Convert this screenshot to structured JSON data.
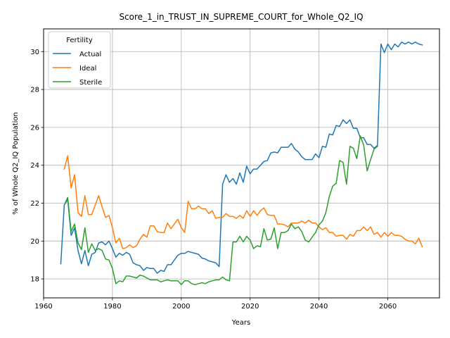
{
  "chart_data": {
    "type": "line",
    "title": "Score_1_in_TRUST_IN_SUPREME_COURT_for_Whole_Q2_IQ",
    "xlabel": "Years",
    "ylabel": "% of Whole Q2_IQ Population",
    "xlim": [
      1960,
      2075
    ],
    "ylim": [
      17.0,
      31.2
    ],
    "xticks": [
      1960,
      1980,
      2000,
      2020,
      2040,
      2060
    ],
    "yticks": [
      18,
      20,
      22,
      24,
      26,
      28,
      30
    ],
    "grid": true,
    "legend": {
      "title": "Fertility",
      "placement": "top-left"
    },
    "colors": {
      "Actual": "#1f77b4",
      "Ideal": "#ff7f0e",
      "Sterile": "#2ca02c"
    },
    "x": [
      1965,
      1966,
      1967,
      1968,
      1969,
      1970,
      1971,
      1972,
      1973,
      1974,
      1975,
      1976,
      1977,
      1978,
      1979,
      1980,
      1981,
      1982,
      1983,
      1984,
      1985,
      1986,
      1987,
      1988,
      1989,
      1990,
      1991,
      1992,
      1993,
      1994,
      1995,
      1996,
      1997,
      1998,
      1999,
      2000,
      2001,
      2002,
      2003,
      2004,
      2005,
      2006,
      2007,
      2008,
      2009,
      2010,
      2011,
      2012,
      2013,
      2014,
      2015,
      2016,
      2017,
      2018,
      2019,
      2020,
      2021,
      2022,
      2023,
      2024,
      2025,
      2026,
      2027,
      2028,
      2029,
      2030,
      2031,
      2032,
      2033,
      2034,
      2035,
      2036,
      2037,
      2038,
      2039,
      2040,
      2041,
      2042,
      2043,
      2044,
      2045,
      2046,
      2047,
      2048,
      2049,
      2050,
      2051,
      2052,
      2053,
      2054,
      2055,
      2056,
      2057,
      2058,
      2059,
      2060,
      2061,
      2062,
      2063,
      2064,
      2065,
      2066,
      2067,
      2068,
      2069,
      2070
    ],
    "series": [
      {
        "name": "Actual",
        "values": [
          18.8,
          21.9,
          22.2,
          20.3,
          20.7,
          19.5,
          18.8,
          19.5,
          18.7,
          19.3,
          19.4,
          19.9,
          19.95,
          19.8,
          20.0,
          19.6,
          19.15,
          19.35,
          19.25,
          19.4,
          19.3,
          18.85,
          18.75,
          18.7,
          18.45,
          18.6,
          18.55,
          18.55,
          18.3,
          18.45,
          18.4,
          18.75,
          18.75,
          19.0,
          19.25,
          19.35,
          19.35,
          19.45,
          19.4,
          19.35,
          19.3,
          19.1,
          19.05,
          18.95,
          18.9,
          18.85,
          18.65,
          23.0,
          23.5,
          23.1,
          23.3,
          23.0,
          23.6,
          23.1,
          23.95,
          23.55,
          23.8,
          23.8,
          24.0,
          24.2,
          24.25,
          24.65,
          24.7,
          24.65,
          24.95,
          24.95,
          24.95,
          25.15,
          24.85,
          24.7,
          24.45,
          24.3,
          24.3,
          24.3,
          24.6,
          24.4,
          25.0,
          24.95,
          25.65,
          25.6,
          26.1,
          26.05,
          26.4,
          26.2,
          26.4,
          25.95,
          25.95,
          25.45,
          25.45,
          25.1,
          25.1,
          24.9,
          25.05,
          30.4,
          29.95,
          30.4,
          30.1,
          30.4,
          30.25,
          30.5,
          30.4,
          30.5,
          30.4,
          30.5,
          30.4,
          30.35
        ]
      },
      {
        "name": "Ideal",
        "values": [
          null,
          23.8,
          24.5,
          22.8,
          23.5,
          21.5,
          21.3,
          22.4,
          21.4,
          21.4,
          21.9,
          22.4,
          21.8,
          21.25,
          21.35,
          20.7,
          19.9,
          20.15,
          19.6,
          19.65,
          19.8,
          19.65,
          19.75,
          20.1,
          20.35,
          20.2,
          20.8,
          20.8,
          20.5,
          20.45,
          20.45,
          20.95,
          20.65,
          20.9,
          21.15,
          20.7,
          20.45,
          22.1,
          21.7,
          21.7,
          21.85,
          21.7,
          21.7,
          21.45,
          21.6,
          21.2,
          21.25,
          21.25,
          21.45,
          21.3,
          21.3,
          21.2,
          21.35,
          21.2,
          21.6,
          21.3,
          21.6,
          21.35,
          21.6,
          21.75,
          21.4,
          21.35,
          21.35,
          20.9,
          20.9,
          20.85,
          20.75,
          20.95,
          20.95,
          20.95,
          21.05,
          20.95,
          21.1,
          20.95,
          20.95,
          20.75,
          20.6,
          20.7,
          20.45,
          20.45,
          20.25,
          20.3,
          20.3,
          20.1,
          20.35,
          20.25,
          20.55,
          20.55,
          20.75,
          20.55,
          20.75,
          20.35,
          20.45,
          20.2,
          20.45,
          20.25,
          20.45,
          20.3,
          20.3,
          20.25,
          20.1,
          20.0,
          20.0,
          19.85,
          20.15,
          19.7
        ]
      },
      {
        "name": "Sterile",
        "values": [
          null,
          21.9,
          22.3,
          20.5,
          20.9,
          19.9,
          19.55,
          20.7,
          19.4,
          19.85,
          19.5,
          19.6,
          19.5,
          19.05,
          19.0,
          18.55,
          17.75,
          17.9,
          17.85,
          18.15,
          18.15,
          18.1,
          18.05,
          18.2,
          18.15,
          18.05,
          17.95,
          17.95,
          17.95,
          17.85,
          17.9,
          17.95,
          17.9,
          17.9,
          17.9,
          17.7,
          17.9,
          17.9,
          17.75,
          17.7,
          17.75,
          17.8,
          17.75,
          17.85,
          17.9,
          17.95,
          17.95,
          18.1,
          17.95,
          17.9,
          19.95,
          19.95,
          20.25,
          19.95,
          20.25,
          20.05,
          19.6,
          19.75,
          19.7,
          20.65,
          20.05,
          20.1,
          20.7,
          19.6,
          20.45,
          20.45,
          20.55,
          20.9,
          20.65,
          20.75,
          20.5,
          20.05,
          19.95,
          20.2,
          20.45,
          20.85,
          21.05,
          21.5,
          22.35,
          22.9,
          23.05,
          24.25,
          24.15,
          23.0,
          25.0,
          24.9,
          24.35,
          25.55,
          25.05,
          23.7,
          24.3,
          24.85,
          25.0,
          null,
          null,
          null,
          null,
          null,
          null,
          null,
          null,
          null,
          null,
          null,
          null,
          null
        ]
      }
    ]
  }
}
